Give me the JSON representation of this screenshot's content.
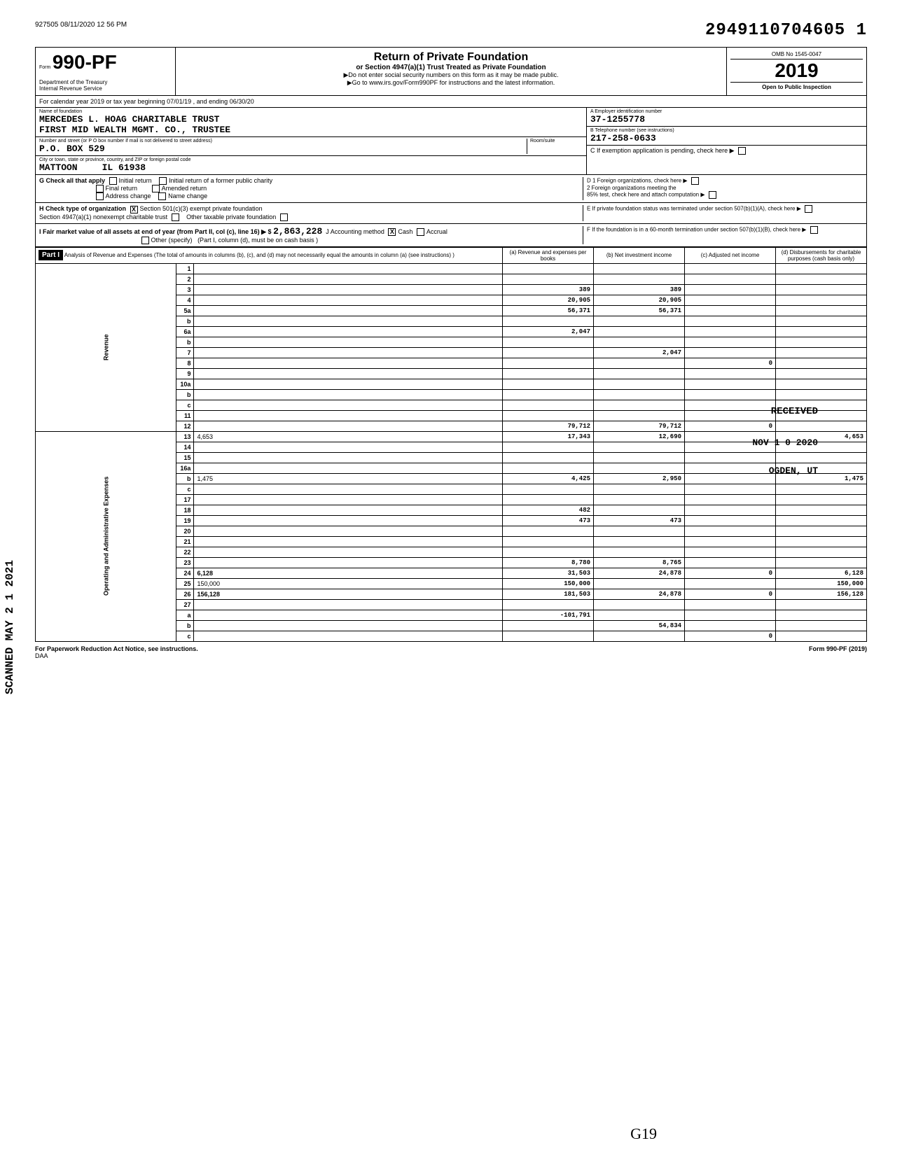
{
  "header": {
    "timestamp": "927505 08/11/2020 12 56 PM",
    "doc_id": "2949110704605  1"
  },
  "form": {
    "number": "990-PF",
    "form_prefix": "Form",
    "dept1": "Department of the Treasury",
    "dept2": "Internal Revenue Service",
    "title": "Return of Private Foundation",
    "subtitle": "or Section 4947(a)(1) Trust Treated as Private Foundation",
    "note1": "▶Do not enter social security numbers on this form as it may be made public.",
    "note2": "▶Go to www.irs.gov/Form990PF for instructions and the latest information.",
    "omb": "OMB No 1545-0047",
    "year": "2019",
    "open_public": "Open to Public Inspection",
    "cal_year": "For calendar year 2019 or tax year beginning 07/01/19 , and ending  06/30/20"
  },
  "foundation": {
    "name_label": "Name of foundation",
    "name1": "MERCEDES L. HOAG CHARITABLE TRUST",
    "name2": "FIRST MID WEALTH MGMT. CO., TRUSTEE",
    "addr_label": "Number and street (or P O box number if mail is not delivered to street address)",
    "addr": "P.O. BOX 529",
    "room_label": "Room/suite",
    "city_label": "City or town, state or province, country, and ZIP or foreign postal code",
    "city": "MATTOON",
    "state": "IL 61938"
  },
  "identification": {
    "ein_label": "A   Employer identification number",
    "ein": "37-1255778",
    "phone_label": "B   Telephone number (see instructions)",
    "phone": "217-258-0633",
    "exemption_label": "C   If exemption application is pending, check here",
    "d1": "D  1  Foreign organizations, check here",
    "d2": "2  Foreign organizations meeting the",
    "d2b": "85% test, check here and attach computation",
    "e": "E   If private foundation status was terminated under section 507(b)(1)(A), check here",
    "f": "F   If the foundation is in a 60-month termination under section 507(b)(1)(B), check here"
  },
  "section_g": {
    "label": "G  Check all that apply",
    "initial": "Initial return",
    "final": "Final return",
    "address": "Address change",
    "initial_former": "Initial return of a former public charity",
    "amended": "Amended return",
    "name_change": "Name change"
  },
  "section_h": {
    "label": "H  Check type of organization",
    "s501": "Section 501(c)(3) exempt private foundation",
    "s4947": "Section 4947(a)(1) nonexempt charitable trust",
    "other": "Other taxable private foundation"
  },
  "section_i": {
    "label": "I   Fair market value of all assets at end of year (from Part II, col (c), line 16) ▶  $",
    "value": "2,863,228",
    "j_label": "J   Accounting method",
    "cash": "Cash",
    "accrual": "Accrual",
    "other": "Other (specify)",
    "note": "(Part I, column (d), must be on cash basis )"
  },
  "part1": {
    "title": "Part I",
    "desc": "Analysis of Revenue and Expenses (The total of amounts in columns (b), (c), and (d) may not necessarily equal the amounts in column (a) (see instructions) )",
    "col_a": "(a) Revenue and expenses per books",
    "col_b": "(b) Net investment income",
    "col_c": "(c) Adjusted net income",
    "col_d": "(d) Disbursements for charitable purposes (cash basis only)"
  },
  "section_labels": {
    "revenue": "Revenue",
    "operating": "Operating and Administrative Expenses"
  },
  "rows": [
    {
      "n": "1",
      "d": "",
      "a": "",
      "b": "",
      "c": ""
    },
    {
      "n": "2",
      "d": "",
      "a": "",
      "b": "",
      "c": ""
    },
    {
      "n": "3",
      "d": "",
      "a": "389",
      "b": "389",
      "c": ""
    },
    {
      "n": "4",
      "d": "",
      "a": "20,905",
      "b": "20,905",
      "c": ""
    },
    {
      "n": "5a",
      "d": "",
      "a": "56,371",
      "b": "56,371",
      "c": ""
    },
    {
      "n": "b",
      "d": "",
      "a": "",
      "b": "",
      "c": ""
    },
    {
      "n": "6a",
      "d": "",
      "a": "2,047",
      "b": "",
      "c": ""
    },
    {
      "n": "b",
      "d": "",
      "a": "",
      "b": "",
      "c": ""
    },
    {
      "n": "7",
      "d": "",
      "a": "",
      "b": "2,047",
      "c": ""
    },
    {
      "n": "8",
      "d": "",
      "a": "",
      "b": "",
      "c": "0"
    },
    {
      "n": "9",
      "d": "",
      "a": "",
      "b": "",
      "c": ""
    },
    {
      "n": "10a",
      "d": "",
      "a": "",
      "b": "",
      "c": ""
    },
    {
      "n": "b",
      "d": "",
      "a": "",
      "b": "",
      "c": ""
    },
    {
      "n": "c",
      "d": "",
      "a": "",
      "b": "",
      "c": ""
    },
    {
      "n": "11",
      "d": "",
      "a": "",
      "b": "",
      "c": ""
    },
    {
      "n": "12",
      "d": "",
      "a": "79,712",
      "b": "79,712",
      "c": "0",
      "bold": true
    },
    {
      "n": "13",
      "d": "4,653",
      "a": "17,343",
      "b": "12,690",
      "c": ""
    },
    {
      "n": "14",
      "d": "",
      "a": "",
      "b": "",
      "c": ""
    },
    {
      "n": "15",
      "d": "",
      "a": "",
      "b": "",
      "c": ""
    },
    {
      "n": "16a",
      "d": "",
      "a": "",
      "b": "",
      "c": ""
    },
    {
      "n": "b",
      "d": "1,475",
      "a": "4,425",
      "b": "2,950",
      "c": ""
    },
    {
      "n": "c",
      "d": "",
      "a": "",
      "b": "",
      "c": ""
    },
    {
      "n": "17",
      "d": "",
      "a": "",
      "b": "",
      "c": ""
    },
    {
      "n": "18",
      "d": "",
      "a": "482",
      "b": "",
      "c": ""
    },
    {
      "n": "19",
      "d": "",
      "a": "473",
      "b": "473",
      "c": ""
    },
    {
      "n": "20",
      "d": "",
      "a": "",
      "b": "",
      "c": ""
    },
    {
      "n": "21",
      "d": "",
      "a": "",
      "b": "",
      "c": ""
    },
    {
      "n": "22",
      "d": "",
      "a": "",
      "b": "",
      "c": ""
    },
    {
      "n": "23",
      "d": "",
      "a": "8,780",
      "b": "8,765",
      "c": ""
    },
    {
      "n": "24",
      "d": "6,128",
      "a": "31,503",
      "b": "24,878",
      "c": "0",
      "bold": true
    },
    {
      "n": "25",
      "d": "150,000",
      "a": "150,000",
      "b": "",
      "c": ""
    },
    {
      "n": "26",
      "d": "156,128",
      "a": "181,503",
      "b": "24,878",
      "c": "0",
      "bold": true
    },
    {
      "n": "27",
      "d": "",
      "a": "",
      "b": "",
      "c": ""
    },
    {
      "n": "a",
      "d": "",
      "a": "-101,791",
      "b": "",
      "c": "",
      "bold": true
    },
    {
      "n": "b",
      "d": "",
      "a": "",
      "b": "54,834",
      "c": "",
      "bold": true
    },
    {
      "n": "c",
      "d": "",
      "a": "",
      "b": "",
      "c": "0",
      "bold": true
    }
  ],
  "footer": {
    "paperwork": "For Paperwork Reduction Act Notice, see instructions.",
    "daa": "DAA",
    "form_ref": "Form 990-PF (2019)"
  },
  "stamps": {
    "scanned": "SCANNED MAY 2 1 2021",
    "received": "RECEIVED",
    "nov": "NOV 1 0 2020",
    "ogden": "OGDEN, UT",
    "g19": "G19"
  }
}
